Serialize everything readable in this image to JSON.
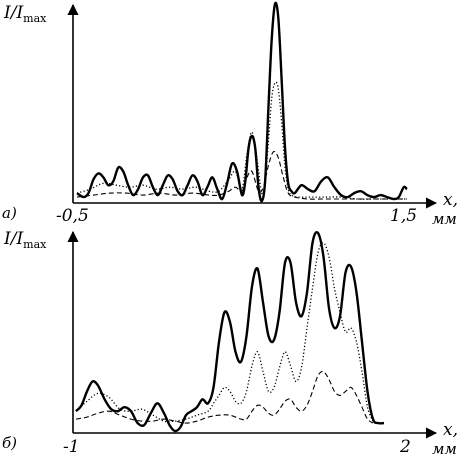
{
  "chart_data": [
    {
      "type": "line",
      "panel_label": "а)",
      "ylabel_main": "I/I",
      "ylabel_sub": "max",
      "xlabel": "x,",
      "xunit": "мм",
      "xmin_label": "-0,5",
      "xmax_label": "1,5",
      "xlim": [
        -0.5,
        1.5
      ],
      "ylim": [
        0,
        1.0
      ],
      "series": [
        {
          "style": "solid",
          "x": [
            -0.5,
            -0.46,
            -0.43,
            -0.4,
            -0.37,
            -0.34,
            -0.31,
            -0.28,
            -0.25,
            -0.22,
            -0.19,
            -0.16,
            -0.13,
            -0.1,
            -0.07,
            -0.04,
            -0.01,
            0.02,
            0.05,
            0.08,
            0.11,
            0.14,
            0.17,
            0.2,
            0.23,
            0.26,
            0.29,
            0.32,
            0.35,
            0.38,
            0.41,
            0.44,
            0.47,
            0.5,
            0.52,
            0.54,
            0.56,
            0.58,
            0.6,
            0.62,
            0.64,
            0.66,
            0.68,
            0.7,
            0.72,
            0.74,
            0.76,
            0.78,
            0.8,
            0.82,
            0.86,
            0.9,
            0.94,
            0.98,
            1.02,
            1.06,
            1.1,
            1.14,
            1.18,
            1.22,
            1.26,
            1.3,
            1.34,
            1.38,
            1.42,
            1.45,
            1.48,
            1.5
          ],
          "y": [
            0.04,
            0.02,
            0.04,
            0.11,
            0.14,
            0.12,
            0.08,
            0.1,
            0.17,
            0.15,
            0.08,
            0.03,
            0.06,
            0.12,
            0.13,
            0.07,
            0.03,
            0.08,
            0.13,
            0.11,
            0.05,
            0.03,
            0.08,
            0.13,
            0.1,
            0.03,
            0.07,
            0.12,
            0.06,
            0.01,
            0.09,
            0.19,
            0.15,
            0.03,
            0.1,
            0.27,
            0.33,
            0.27,
            0.07,
            0.0,
            0.1,
            0.47,
            0.82,
            1.0,
            0.93,
            0.62,
            0.28,
            0.09,
            0.05,
            0.04,
            0.08,
            0.06,
            0.05,
            0.1,
            0.12,
            0.07,
            0.03,
            0.02,
            0.04,
            0.05,
            0.03,
            0.02,
            0.03,
            0.02,
            0.01,
            0.02,
            0.07,
            0.06
          ]
        },
        {
          "style": "dotted",
          "x": [
            -0.5,
            -0.42,
            -0.34,
            -0.26,
            -0.18,
            -0.1,
            -0.02,
            0.06,
            0.14,
            0.22,
            0.3,
            0.36,
            0.42,
            0.46,
            0.5,
            0.53,
            0.56,
            0.59,
            0.62,
            0.64,
            0.66,
            0.68,
            0.7,
            0.72,
            0.74,
            0.76,
            0.78,
            0.8,
            0.84,
            0.9,
            1.0,
            1.1,
            1.2,
            1.3,
            1.4,
            1.5
          ],
          "y": [
            0.04,
            0.06,
            0.09,
            0.08,
            0.07,
            0.08,
            0.06,
            0.07,
            0.06,
            0.07,
            0.05,
            0.05,
            0.11,
            0.15,
            0.06,
            0.24,
            0.35,
            0.22,
            0.04,
            0.1,
            0.3,
            0.52,
            0.6,
            0.57,
            0.4,
            0.18,
            0.06,
            0.03,
            0.02,
            0.02,
            0.02,
            0.02,
            0.01,
            0.01,
            0.01,
            0.01
          ]
        },
        {
          "style": "dashed",
          "x": [
            -0.5,
            -0.4,
            -0.3,
            -0.2,
            -0.1,
            0.0,
            0.1,
            0.2,
            0.3,
            0.36,
            0.42,
            0.46,
            0.5,
            0.53,
            0.56,
            0.6,
            0.63,
            0.66,
            0.69,
            0.72,
            0.75,
            0.78,
            0.82,
            0.9,
            1.0,
            1.1,
            1.2,
            1.3,
            1.4,
            1.5
          ],
          "y": [
            0.02,
            0.03,
            0.04,
            0.04,
            0.03,
            0.04,
            0.03,
            0.04,
            0.03,
            0.03,
            0.05,
            0.07,
            0.05,
            0.12,
            0.15,
            0.05,
            0.07,
            0.18,
            0.25,
            0.22,
            0.12,
            0.04,
            0.02,
            0.01,
            0.01,
            0.01,
            0.01,
            0.01,
            0.01,
            0.01
          ]
        }
      ]
    },
    {
      "type": "line",
      "panel_label": "б)",
      "ylabel_main": "I/I",
      "ylabel_sub": "max",
      "xlabel": "x,",
      "xunit": "мм",
      "xmin_label": "-1",
      "xmax_label": "2",
      "xlim": [
        -1,
        2
      ],
      "ylim": [
        0,
        1.0
      ],
      "series": [
        {
          "style": "solid",
          "x": [
            -1.0,
            -0.95,
            -0.9,
            -0.85,
            -0.8,
            -0.74,
            -0.68,
            -0.62,
            -0.56,
            -0.5,
            -0.44,
            -0.38,
            -0.32,
            -0.26,
            -0.2,
            -0.15,
            -0.1,
            -0.05,
            0.0,
            0.05,
            0.1,
            0.15,
            0.2,
            0.25,
            0.3,
            0.35,
            0.4,
            0.45,
            0.5,
            0.55,
            0.6,
            0.65,
            0.7,
            0.75,
            0.8,
            0.85,
            0.9,
            0.95,
            1.0,
            1.05,
            1.1,
            1.15,
            1.2,
            1.25,
            1.3,
            1.35,
            1.4,
            1.45,
            1.5,
            1.55,
            1.6,
            1.65,
            1.7,
            1.75,
            1.8
          ],
          "y": [
            0.1,
            0.13,
            0.2,
            0.25,
            0.23,
            0.16,
            0.11,
            0.1,
            0.12,
            0.1,
            0.04,
            0.03,
            0.09,
            0.14,
            0.09,
            0.03,
            0.0,
            0.02,
            0.08,
            0.1,
            0.12,
            0.16,
            0.14,
            0.22,
            0.45,
            0.6,
            0.55,
            0.4,
            0.35,
            0.48,
            0.73,
            0.82,
            0.65,
            0.48,
            0.46,
            0.6,
            0.85,
            0.85,
            0.65,
            0.58,
            0.7,
            0.95,
            1.0,
            0.88,
            0.62,
            0.52,
            0.58,
            0.8,
            0.83,
            0.7,
            0.45,
            0.2,
            0.06,
            0.04,
            0.04
          ]
        },
        {
          "style": "dotted",
          "x": [
            -1.0,
            -0.9,
            -0.8,
            -0.7,
            -0.6,
            -0.5,
            -0.4,
            -0.3,
            -0.2,
            -0.1,
            0.0,
            0.1,
            0.2,
            0.25,
            0.3,
            0.35,
            0.4,
            0.45,
            0.5,
            0.55,
            0.6,
            0.65,
            0.7,
            0.75,
            0.8,
            0.85,
            0.9,
            0.95,
            1.0,
            1.05,
            1.1,
            1.15,
            1.2,
            1.25,
            1.3,
            1.35,
            1.4,
            1.45,
            1.5,
            1.55,
            1.6,
            1.65,
            1.7
          ],
          "y": [
            0.1,
            0.15,
            0.19,
            0.17,
            0.11,
            0.1,
            0.11,
            0.08,
            0.05,
            0.05,
            0.06,
            0.08,
            0.1,
            0.14,
            0.18,
            0.22,
            0.2,
            0.15,
            0.14,
            0.2,
            0.33,
            0.4,
            0.3,
            0.2,
            0.22,
            0.32,
            0.4,
            0.33,
            0.25,
            0.32,
            0.52,
            0.72,
            0.9,
            0.95,
            0.88,
            0.72,
            0.6,
            0.5,
            0.52,
            0.45,
            0.3,
            0.12,
            0.05
          ]
        },
        {
          "style": "dashed",
          "x": [
            -1.0,
            -0.9,
            -0.8,
            -0.7,
            -0.6,
            -0.5,
            -0.4,
            -0.3,
            -0.2,
            -0.1,
            0.0,
            0.1,
            0.2,
            0.3,
            0.4,
            0.5,
            0.55,
            0.6,
            0.65,
            0.7,
            0.75,
            0.8,
            0.85,
            0.9,
            0.95,
            1.0,
            1.05,
            1.1,
            1.15,
            1.2,
            1.25,
            1.3,
            1.35,
            1.4,
            1.45,
            1.5,
            1.55,
            1.6,
            1.65,
            1.7
          ],
          "y": [
            0.06,
            0.07,
            0.09,
            0.1,
            0.08,
            0.06,
            0.05,
            0.05,
            0.06,
            0.05,
            0.04,
            0.05,
            0.07,
            0.08,
            0.08,
            0.06,
            0.06,
            0.1,
            0.13,
            0.12,
            0.09,
            0.08,
            0.11,
            0.15,
            0.16,
            0.12,
            0.1,
            0.13,
            0.2,
            0.28,
            0.3,
            0.26,
            0.2,
            0.18,
            0.2,
            0.22,
            0.18,
            0.12,
            0.06,
            0.04
          ]
        }
      ]
    }
  ]
}
